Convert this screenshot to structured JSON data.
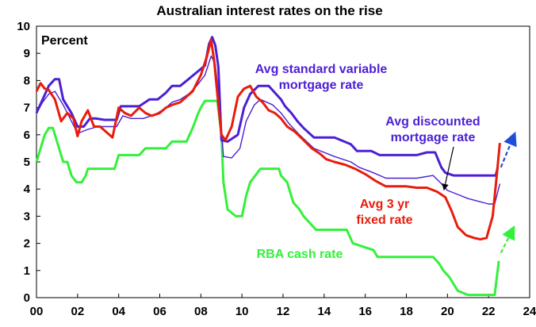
{
  "chart_data": {
    "type": "line",
    "title": "Australian interest rates on the rise",
    "ylabel": "Percent",
    "xlabel": "",
    "xlim": [
      2000,
      2024
    ],
    "ylim": [
      0,
      10
    ],
    "x_ticks": [
      "00",
      "02",
      "04",
      "06",
      "08",
      "10",
      "12",
      "14",
      "16",
      "18",
      "20",
      "22",
      "24"
    ],
    "y_ticks": [
      "0",
      "1",
      "2",
      "3",
      "4",
      "5",
      "6",
      "7",
      "8",
      "9",
      "10"
    ],
    "grid": false,
    "series": [
      {
        "name": "Avg standard variable mortgage rate",
        "color": "#4b1fd6",
        "x": [
          2000.0,
          2000.3,
          2000.6,
          2000.9,
          2001.1,
          2001.3,
          2001.7,
          2002.0,
          2002.3,
          2002.6,
          2002.9,
          2003.3,
          2003.6,
          2003.9,
          2004.1,
          2004.5,
          2005.0,
          2005.5,
          2005.9,
          2006.3,
          2006.6,
          2007.0,
          2007.4,
          2007.8,
          2008.2,
          2008.4,
          2008.55,
          2008.7,
          2008.85,
          2009.0,
          2009.3,
          2009.8,
          2010.1,
          2010.4,
          2010.8,
          2011.3,
          2011.6,
          2011.9,
          2012.1,
          2012.4,
          2012.7,
          2013.0,
          2013.5,
          2013.8,
          2014.5,
          2015.3,
          2015.6,
          2016.3,
          2016.7,
          2017.5,
          2018.5,
          2019.0,
          2019.4,
          2019.7,
          2019.9,
          2020.3,
          2021.5,
          2022.0,
          2022.35,
          2022.45
        ],
        "y": [
          6.8,
          7.3,
          7.8,
          8.05,
          8.05,
          7.3,
          6.8,
          6.3,
          6.3,
          6.6,
          6.6,
          6.55,
          6.55,
          6.55,
          7.05,
          7.05,
          7.05,
          7.3,
          7.3,
          7.55,
          7.8,
          7.8,
          8.05,
          8.3,
          8.55,
          9.35,
          9.6,
          9.3,
          8.5,
          5.8,
          5.75,
          6.0,
          7.0,
          7.5,
          7.8,
          7.8,
          7.55,
          7.3,
          7.05,
          6.8,
          6.5,
          6.25,
          5.9,
          5.9,
          5.9,
          5.65,
          5.4,
          5.4,
          5.25,
          5.25,
          5.25,
          5.35,
          5.35,
          4.8,
          4.6,
          4.5,
          4.5,
          4.5,
          4.5,
          4.8
        ]
      },
      {
        "name": "Avg discounted mortgage rate",
        "color": "#4b1fd6",
        "x": [
          2000.0,
          2000.3,
          2000.6,
          2000.9,
          2001.3,
          2001.7,
          2002.0,
          2002.5,
          2003.0,
          2003.5,
          2003.9,
          2004.2,
          2004.6,
          2005.2,
          2005.8,
          2006.3,
          2006.6,
          2007.0,
          2007.4,
          2007.8,
          2008.2,
          2008.5,
          2008.7,
          2008.9,
          2009.1,
          2009.5,
          2009.9,
          2010.2,
          2010.6,
          2010.9,
          2011.5,
          2011.9,
          2012.3,
          2012.8,
          2013.5,
          2014.5,
          2015.3,
          2015.7,
          2016.4,
          2017.0,
          2018.5,
          2019.3,
          2019.7,
          2020.0,
          2020.5,
          2021.0,
          2021.5,
          2022.0,
          2022.3,
          2022.55
        ],
        "y": [
          6.8,
          7.2,
          7.5,
          7.6,
          7.1,
          6.5,
          6.05,
          6.2,
          6.3,
          6.3,
          6.3,
          6.7,
          6.6,
          6.6,
          6.75,
          7.0,
          7.2,
          7.3,
          7.5,
          7.8,
          8.2,
          8.9,
          8.6,
          7.2,
          5.2,
          5.15,
          5.5,
          6.5,
          7.1,
          7.3,
          7.1,
          6.8,
          6.4,
          6.0,
          5.5,
          5.2,
          5.0,
          4.8,
          4.6,
          4.4,
          4.4,
          4.5,
          4.2,
          3.95,
          3.8,
          3.65,
          3.55,
          3.45,
          3.45,
          4.2
        ]
      },
      {
        "name": "Avg 3 yr fixed rate",
        "color": "#e81c0c",
        "x": [
          2000.0,
          2000.2,
          2000.4,
          2000.6,
          2000.9,
          2001.2,
          2001.5,
          2001.8,
          2002.0,
          2002.2,
          2002.5,
          2002.8,
          2003.1,
          2003.4,
          2003.7,
          2004.0,
          2004.3,
          2004.6,
          2005.0,
          2005.3,
          2005.6,
          2006.0,
          2006.3,
          2006.6,
          2007.0,
          2007.3,
          2007.6,
          2008.0,
          2008.3,
          2008.5,
          2008.65,
          2008.8,
          2009.0,
          2009.2,
          2009.5,
          2009.8,
          2010.1,
          2010.4,
          2010.7,
          2011.0,
          2011.3,
          2011.6,
          2011.9,
          2012.2,
          2012.6,
          2013.0,
          2013.4,
          2013.8,
          2014.1,
          2014.5,
          2015.0,
          2015.5,
          2016.0,
          2016.5,
          2017.0,
          2017.5,
          2018.0,
          2018.5,
          2019.0,
          2019.5,
          2019.9,
          2020.2,
          2020.5,
          2020.9,
          2021.3,
          2021.6,
          2021.9,
          2022.2,
          2022.4,
          2022.55
        ],
        "y": [
          7.6,
          7.9,
          7.7,
          7.65,
          7.3,
          6.5,
          6.8,
          6.6,
          5.95,
          6.5,
          6.9,
          6.3,
          6.3,
          6.1,
          5.9,
          7.0,
          6.8,
          6.7,
          7.0,
          6.8,
          6.7,
          6.8,
          7.0,
          7.1,
          7.2,
          7.4,
          7.6,
          8.2,
          8.9,
          9.5,
          8.7,
          7.5,
          6.0,
          5.8,
          6.3,
          7.4,
          7.7,
          7.8,
          7.4,
          7.2,
          6.9,
          6.8,
          6.6,
          6.3,
          6.1,
          5.8,
          5.5,
          5.3,
          5.1,
          5.0,
          4.9,
          4.75,
          4.55,
          4.3,
          4.1,
          4.1,
          4.1,
          4.05,
          4.05,
          3.9,
          3.7,
          3.2,
          2.6,
          2.3,
          2.2,
          2.15,
          2.2,
          3.0,
          4.5,
          5.7
        ]
      },
      {
        "name": "RBA cash rate",
        "color": "#34f03a",
        "x": [
          2000.0,
          2000.2,
          2000.4,
          2000.6,
          2000.8,
          2001.1,
          2001.3,
          2001.5,
          2001.7,
          2001.95,
          2002.2,
          2002.4,
          2002.5,
          2003.2,
          2003.8,
          2003.9,
          2004.0,
          2005.0,
          2005.3,
          2006.3,
          2006.6,
          2007.3,
          2007.6,
          2007.85,
          2008.0,
          2008.2,
          2008.8,
          2009.0,
          2009.1,
          2009.3,
          2009.7,
          2010.0,
          2010.2,
          2010.4,
          2010.9,
          2011.8,
          2011.9,
          2012.2,
          2012.4,
          2012.5,
          2012.8,
          2013.0,
          2013.3,
          2013.6,
          2015.1,
          2015.4,
          2016.4,
          2016.6,
          2019.3,
          2019.6,
          2019.8,
          2020.1,
          2020.5,
          2021.0,
          2022.3,
          2022.5
        ],
        "y": [
          5.0,
          5.5,
          6.0,
          6.25,
          6.25,
          5.5,
          5.0,
          5.0,
          4.5,
          4.25,
          4.25,
          4.5,
          4.75,
          4.75,
          4.75,
          5.0,
          5.25,
          5.25,
          5.5,
          5.5,
          5.75,
          5.75,
          6.25,
          6.75,
          7.0,
          7.25,
          7.25,
          6.0,
          4.25,
          3.25,
          3.0,
          3.0,
          3.75,
          4.25,
          4.75,
          4.75,
          4.5,
          4.25,
          3.75,
          3.5,
          3.25,
          3.0,
          2.75,
          2.5,
          2.5,
          2.0,
          1.75,
          1.5,
          1.5,
          1.25,
          1.0,
          0.75,
          0.25,
          0.1,
          0.1,
          1.35
        ]
      }
    ],
    "projections": [
      {
        "series": "Avg standard variable mortgage rate",
        "color": "#1f4ed6",
        "x": [
          2022.6,
          2023.25
        ],
        "y": [
          4.8,
          6.0
        ]
      },
      {
        "series": "RBA cash rate",
        "color": "#34f03a",
        "x": [
          2022.6,
          2023.2
        ],
        "y": [
          1.65,
          2.55
        ]
      }
    ],
    "annotations": [
      {
        "lines": [
          "Avg standard variable",
          "mortgage rate"
        ],
        "color": "#4b1fd6"
      },
      {
        "lines": [
          "Avg discounted",
          "mortgage rate"
        ],
        "color": "#4b1fd6"
      },
      {
        "lines": [
          "Avg 3 yr",
          "fixed rate"
        ],
        "color": "#e81c0c"
      },
      {
        "lines": [
          "RBA cash rate"
        ],
        "color": "#34f03a"
      }
    ]
  }
}
